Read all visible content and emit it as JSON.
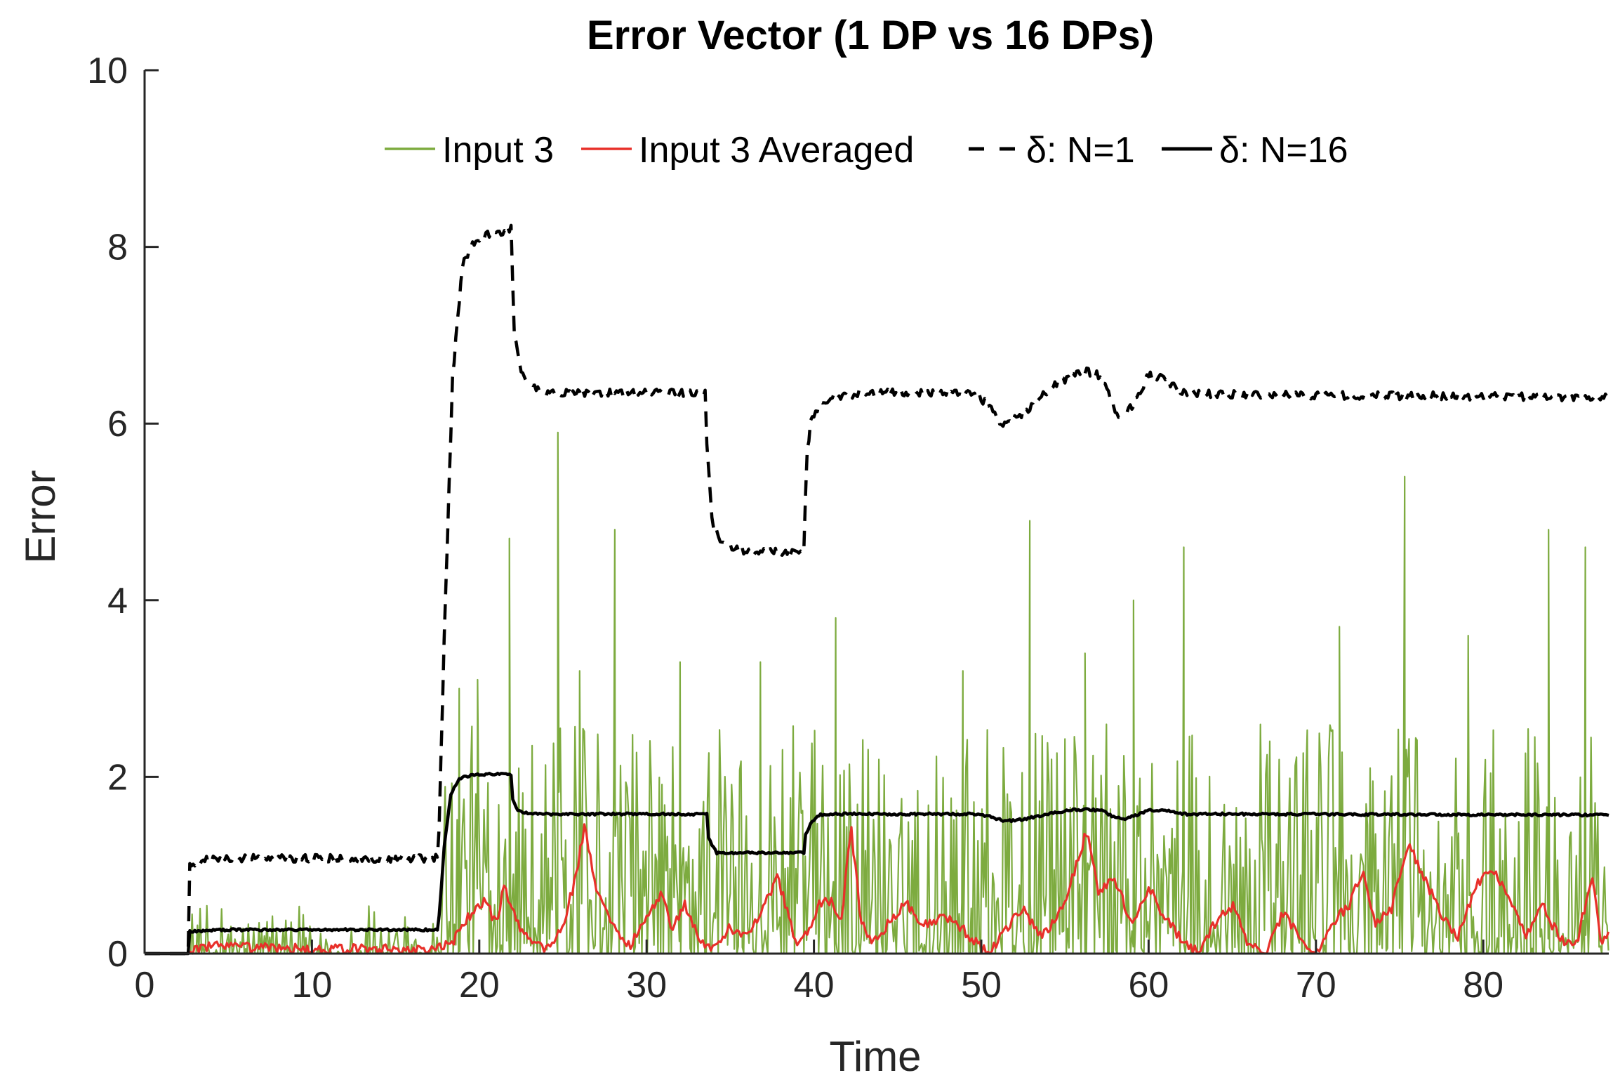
{
  "chart_data": {
    "type": "line",
    "title": "Error Vector (1 DP vs 16 DPs)",
    "xlabel": "Time",
    "ylabel": "Error",
    "xlim": [
      0,
      87.5
    ],
    "ylim": [
      0,
      10
    ],
    "xticks": [
      0,
      10,
      20,
      30,
      40,
      50,
      60,
      70,
      80
    ],
    "yticks": [
      0,
      2,
      4,
      6,
      8,
      10
    ],
    "grid": false,
    "legend_position": "top-center",
    "series": [
      {
        "name": "Input 3",
        "color": "#7DAB3F",
        "style": "solid",
        "description": "noisy spikes; ~0-0.7 for t 2.6-17.5, then dense spikes up to ~5.9 for t>17.5",
        "peaks": [
          [
            18.8,
            3.0
          ],
          [
            19.9,
            3.1
          ],
          [
            21.8,
            4.7
          ],
          [
            24.7,
            5.9
          ],
          [
            26.0,
            3.2
          ],
          [
            28.1,
            4.8
          ],
          [
            32.0,
            3.3
          ],
          [
            36.8,
            3.3
          ],
          [
            41.3,
            3.8
          ],
          [
            48.9,
            3.2
          ],
          [
            52.9,
            4.9
          ],
          [
            56.2,
            3.4
          ],
          [
            59.1,
            4.0
          ],
          [
            62.1,
            4.6
          ],
          [
            71.4,
            3.7
          ],
          [
            75.3,
            5.4
          ],
          [
            79.1,
            3.6
          ],
          [
            83.9,
            4.8
          ],
          [
            86.1,
            4.6
          ]
        ]
      },
      {
        "name": "Input 3 Averaged",
        "color": "#E8302A",
        "style": "solid",
        "x": [
          0,
          2.6,
          3.5,
          10,
          17.5,
          18.5,
          19.5,
          20.3,
          21.0,
          21.5,
          22.3,
          23.0,
          24.0,
          25.0,
          25.8,
          26.3,
          27.0,
          27.8,
          29.0,
          30.0,
          31.0,
          31.5,
          32.3,
          33.5,
          34.0,
          35.0,
          36.0,
          37.0,
          37.8,
          38.5,
          39.0,
          39.5,
          40.3,
          41.0,
          41.6,
          42.2,
          42.8,
          43.5,
          44.5,
          45.5,
          46.5,
          47.5,
          48.5,
          49.5,
          50.5,
          51.5,
          52.5,
          53.5,
          54.5,
          55.0,
          55.6,
          56.3,
          57.0,
          58.0,
          59.0,
          60.0,
          61.0,
          62.0,
          63.0,
          64.0,
          65.0,
          66.0,
          67.0,
          68.0,
          69.0,
          70.0,
          71.0,
          72.0,
          72.8,
          73.5,
          74.5,
          75.5,
          76.5,
          77.5,
          78.5,
          79.5,
          80.5,
          81.5,
          82.5,
          83.5,
          84.5,
          85.5,
          86.5,
          87.0,
          87.5
        ],
        "y": [
          0,
          0,
          0.08,
          0.05,
          0.05,
          0.15,
          0.45,
          0.6,
          0.35,
          0.75,
          0.35,
          0.15,
          0.05,
          0.3,
          0.9,
          1.45,
          0.75,
          0.35,
          0.1,
          0.4,
          0.7,
          0.3,
          0.55,
          0.05,
          0.05,
          0.3,
          0.2,
          0.5,
          0.9,
          0.4,
          0.1,
          0.2,
          0.55,
          0.6,
          0.3,
          1.45,
          0.4,
          0.1,
          0.35,
          0.6,
          0.3,
          0.4,
          0.35,
          0.15,
          0.0,
          0.3,
          0.5,
          0.2,
          0.4,
          0.6,
          0.95,
          1.4,
          0.7,
          0.85,
          0.3,
          0.75,
          0.4,
          0.15,
          0.0,
          0.35,
          0.55,
          0.1,
          0.0,
          0.45,
          0.2,
          0.0,
          0.35,
          0.55,
          0.95,
          0.35,
          0.5,
          1.25,
          0.85,
          0.45,
          0.2,
          0.75,
          0.95,
          0.7,
          0.2,
          0.55,
          0.2,
          0.05,
          0.9,
          0.15,
          0.2
        ]
      },
      {
        "name": "δ: N=1",
        "color": "#000000",
        "style": "dashed",
        "x": [
          0,
          2.6,
          2.65,
          3.3,
          5,
          17.5,
          17.55,
          17.9,
          18.4,
          19.0,
          19.8,
          20.8,
          21.9,
          22.1,
          22.5,
          22.9,
          24,
          33.5,
          33.6,
          33.9,
          34.5,
          36,
          38,
          39.4,
          39.55,
          39.8,
          40.3,
          41,
          43,
          49.5,
          50.5,
          51.2,
          52,
          53,
          54.5,
          56,
          57,
          57.6,
          58.2,
          59,
          60,
          61,
          62,
          64,
          87.5
        ],
        "y": [
          0,
          0,
          1.0,
          1.05,
          1.08,
          1.08,
          1.1,
          3.5,
          6.5,
          7.8,
          8.1,
          8.15,
          8.2,
          7.0,
          6.6,
          6.45,
          6.35,
          6.35,
          5.8,
          4.9,
          4.65,
          4.55,
          4.55,
          4.55,
          5.6,
          6.0,
          6.2,
          6.3,
          6.35,
          6.35,
          6.2,
          6.0,
          6.05,
          6.2,
          6.45,
          6.6,
          6.55,
          6.35,
          6.05,
          6.2,
          6.55,
          6.5,
          6.35,
          6.33,
          6.3
        ]
      },
      {
        "name": "δ: N=16",
        "color": "#000000",
        "style": "solid",
        "x": [
          0,
          2.6,
          2.65,
          5,
          17.5,
          17.55,
          17.9,
          18.3,
          18.8,
          19.5,
          20.5,
          21.9,
          22.0,
          22.3,
          23,
          33.6,
          33.7,
          34.2,
          39.4,
          39.5,
          39.9,
          40.4,
          41,
          49.5,
          50.5,
          51.5,
          52.5,
          54,
          55.5,
          56.5,
          57.2,
          57.8,
          58.4,
          59,
          60,
          61,
          62,
          64,
          87.5
        ],
        "y": [
          0,
          0,
          0.25,
          0.27,
          0.27,
          0.3,
          1.2,
          1.8,
          1.98,
          2.02,
          2.03,
          2.03,
          1.75,
          1.62,
          1.58,
          1.58,
          1.3,
          1.14,
          1.14,
          1.35,
          1.5,
          1.57,
          1.58,
          1.58,
          1.55,
          1.5,
          1.52,
          1.58,
          1.63,
          1.63,
          1.62,
          1.56,
          1.52,
          1.55,
          1.62,
          1.62,
          1.58,
          1.58,
          1.57
        ]
      }
    ]
  }
}
